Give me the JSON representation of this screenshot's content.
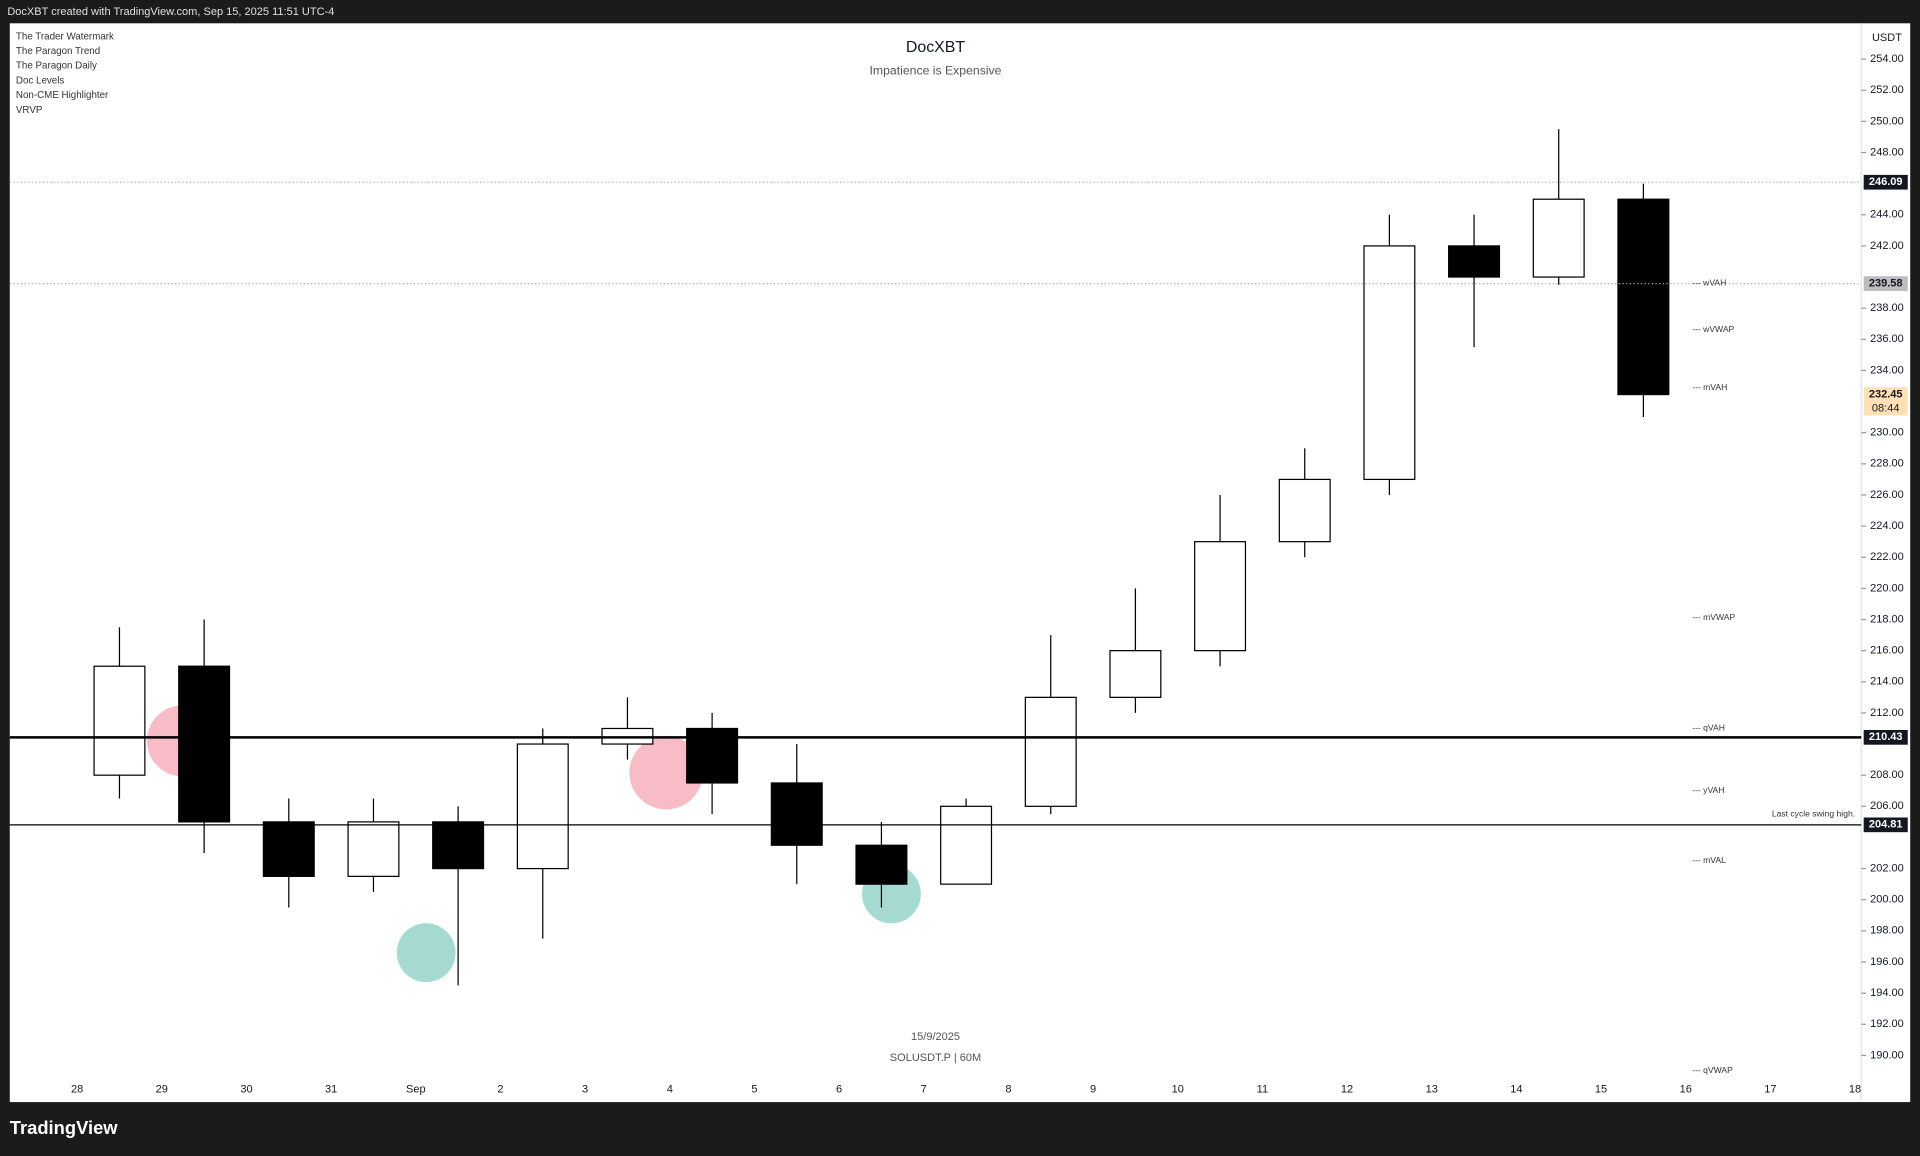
{
  "header": {
    "text": "DocXBT created with TradingView.com, Sep 15, 2025 11:51 UTC-4"
  },
  "indicators": [
    "The Trader Watermark",
    "The Paragon Trend",
    "The Paragon Daily",
    "Doc Levels",
    "Non-CME Highlighter",
    "VRVP"
  ],
  "chart_data": {
    "type": "candlestick",
    "title": "DocXBT",
    "subtitle": "Impatience is Expensive",
    "currency": "USDT",
    "categories": [
      "28",
      "29",
      "30",
      "31",
      "Sep",
      "2",
      "3",
      "4",
      "5",
      "6",
      "7",
      "8",
      "9",
      "10",
      "11",
      "12",
      "13",
      "14",
      "15",
      "16",
      "17",
      "18"
    ],
    "open": [
      208,
      215,
      205,
      201.5,
      205,
      202,
      210,
      211,
      207.5,
      203.5,
      201,
      206,
      213,
      216,
      223,
      227,
      242,
      240,
      245,
      null,
      null,
      null
    ],
    "high": [
      217.5,
      218,
      206.5,
      206.5,
      206,
      211,
      213,
      212,
      210,
      205,
      206.5,
      217,
      220,
      226,
      229,
      244,
      244,
      249.5,
      246,
      null,
      null,
      null
    ],
    "low": [
      206.5,
      203,
      199.5,
      200.5,
      194.5,
      197.5,
      209,
      205.5,
      201,
      199.5,
      201,
      205.5,
      212,
      215,
      222,
      226,
      235.5,
      239.5,
      231,
      null,
      null,
      null
    ],
    "close": [
      215,
      205,
      201.5,
      205,
      202,
      210,
      211,
      207.5,
      203.5,
      201,
      206,
      213,
      216,
      223,
      227,
      242,
      240,
      245,
      232.45,
      null,
      null,
      null
    ],
    "ylim": [
      187,
      256.3
    ],
    "yticks": [
      {
        "value": 254,
        "label": "254.00"
      },
      {
        "value": 252,
        "label": "252.00"
      },
      {
        "value": 250,
        "label": "250.00"
      },
      {
        "value": 248,
        "label": "248.00"
      },
      {
        "value": 244,
        "label": "244.00"
      },
      {
        "value": 242,
        "label": "242.00"
      },
      {
        "value": 238,
        "label": "238.00"
      },
      {
        "value": 236,
        "label": "236.00"
      },
      {
        "value": 234,
        "label": "234.00"
      },
      {
        "value": 230,
        "label": "230.00"
      },
      {
        "value": 228,
        "label": "228.00"
      },
      {
        "value": 226,
        "label": "226.00"
      },
      {
        "value": 224,
        "label": "224.00"
      },
      {
        "value": 222,
        "label": "222.00"
      },
      {
        "value": 220,
        "label": "220.00"
      },
      {
        "value": 218,
        "label": "218.00"
      },
      {
        "value": 216,
        "label": "216.00"
      },
      {
        "value": 214,
        "label": "214.00"
      },
      {
        "value": 212,
        "label": "212.00"
      },
      {
        "value": 208,
        "label": "208.00"
      },
      {
        "value": 206,
        "label": "206.00"
      },
      {
        "value": 202,
        "label": "202.00"
      },
      {
        "value": 200,
        "label": "200.00"
      },
      {
        "value": 198,
        "label": "198.00"
      },
      {
        "value": 196,
        "label": "196.00"
      },
      {
        "value": 194,
        "label": "194.00"
      },
      {
        "value": 192,
        "label": "192.00"
      },
      {
        "value": 190,
        "label": "190.00"
      }
    ],
    "levels": [
      246.09,
      239.58,
      232.45,
      210.43,
      204.81
    ],
    "level_styles": [
      "dotted",
      "dotted",
      "none",
      "thick",
      "thin"
    ],
    "level_colors": [
      "#131722",
      "#bdbdbd",
      "#ffe0b2",
      "#131722",
      "#131722"
    ],
    "countdown": "08:44",
    "annotations": [
      {
        "text": "--- wVAH",
        "value": 239.6
      },
      {
        "text": "--- wVWAP",
        "value": 236.6
      },
      {
        "text": "--- mVAH",
        "value": 232.9
      },
      {
        "text": "--- mVWAP",
        "value": 218.1
      },
      {
        "text": "--- qVAH",
        "value": 211
      },
      {
        "text": "--- yVAH",
        "value": 207
      },
      {
        "text": "--- mVAL",
        "value": 202.5
      },
      {
        "text": "--- qVWAP",
        "value": 189
      },
      {
        "text": "Last cycle swing high.",
        "value": 205.5
      }
    ],
    "date_label": "15/9/2025",
    "symbol": "SOLUSDT.P | 60M",
    "up_color": "#ffffff",
    "down_color": "#000000"
  },
  "footer": {
    "logo": "TradingView"
  }
}
